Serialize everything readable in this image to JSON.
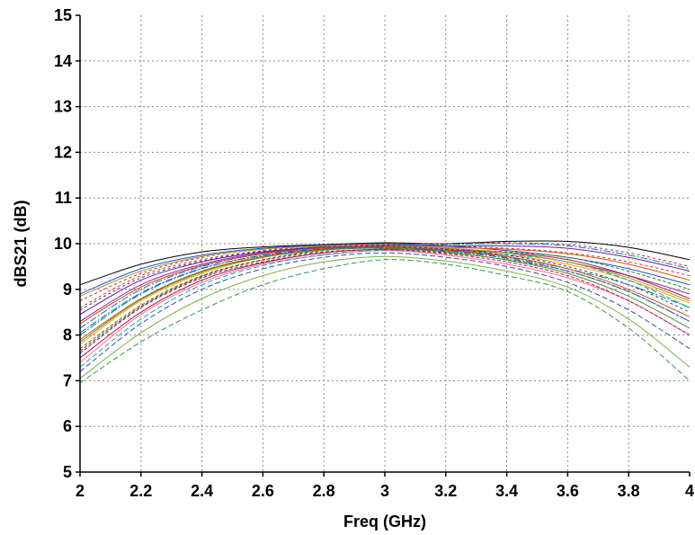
{
  "chart_data": {
    "type": "line",
    "title": "",
    "xlabel": "Freq (GHz)",
    "ylabel": "dBS21 (dB)",
    "xlim": [
      2,
      4
    ],
    "ylim": [
      5,
      15
    ],
    "x_ticks": [
      "2",
      "2.2",
      "2.4",
      "2.6",
      "2.8",
      "3",
      "3.2",
      "3.4",
      "3.6",
      "3.8",
      "4"
    ],
    "y_ticks": [
      "5",
      "6",
      "7",
      "8",
      "9",
      "10",
      "11",
      "12",
      "13",
      "14",
      "15"
    ],
    "grid": true,
    "legend": "none",
    "x": [
      2.0,
      2.2,
      2.4,
      2.6,
      2.8,
      3.0,
      3.2,
      3.4,
      3.6,
      3.8,
      4.0
    ],
    "series_count_description_free": true,
    "envelope": {
      "upper": [
        9.15,
        9.6,
        9.85,
        9.95,
        10.0,
        10.05,
        10.05,
        10.1,
        10.1,
        9.95,
        9.7
      ],
      "lower": [
        6.9,
        7.8,
        8.5,
        9.05,
        9.4,
        9.6,
        9.5,
        9.25,
        8.9,
        8.1,
        6.95
      ]
    },
    "series": [
      {
        "values": [
          9.1,
          9.55,
          9.82,
          9.93,
          9.98,
          10.02,
          10.0,
          10.05,
          10.05,
          9.92,
          9.65
        ],
        "color": "#000000"
      },
      {
        "values": [
          6.95,
          7.85,
          8.55,
          9.1,
          9.45,
          9.65,
          9.55,
          9.3,
          8.95,
          8.15,
          7.0
        ],
        "color": "#2a9d4a"
      },
      {
        "values": [
          8.9,
          9.45,
          9.75,
          9.9,
          9.97,
          10.0,
          9.95,
          9.85,
          9.7,
          9.45,
          9.1
        ],
        "color": "#1f4fd1"
      },
      {
        "values": [
          8.6,
          9.3,
          9.65,
          9.85,
          9.95,
          9.98,
          9.95,
          9.9,
          9.8,
          9.6,
          9.3
        ],
        "color": "#d12f2f"
      },
      {
        "values": [
          8.3,
          9.1,
          9.55,
          9.8,
          9.92,
          9.95,
          9.9,
          9.8,
          9.6,
          9.3,
          8.9
        ],
        "color": "#8e24aa"
      },
      {
        "values": [
          8.0,
          8.9,
          9.45,
          9.75,
          9.9,
          9.93,
          9.85,
          9.7,
          9.45,
          9.1,
          8.6
        ],
        "color": "#00897b"
      },
      {
        "values": [
          7.8,
          8.75,
          9.35,
          9.7,
          9.88,
          9.92,
          9.85,
          9.75,
          9.55,
          9.2,
          8.7
        ],
        "color": "#f4a300"
      },
      {
        "values": [
          7.6,
          8.6,
          9.25,
          9.6,
          9.8,
          9.88,
          9.8,
          9.65,
          9.4,
          8.95,
          8.3
        ],
        "color": "#5d4037"
      },
      {
        "values": [
          7.4,
          8.45,
          9.15,
          9.55,
          9.75,
          9.85,
          9.75,
          9.55,
          9.25,
          8.75,
          8.0
        ],
        "color": "#ff6f91"
      },
      {
        "values": [
          7.2,
          8.25,
          9.0,
          9.45,
          9.7,
          9.8,
          9.7,
          9.5,
          9.15,
          8.55,
          7.7
        ],
        "color": "#3949ab"
      },
      {
        "values": [
          7.05,
          8.05,
          8.8,
          9.3,
          9.6,
          9.72,
          9.62,
          9.4,
          9.05,
          8.35,
          7.3
        ],
        "color": "#7cb342"
      },
      {
        "values": [
          8.75,
          9.35,
          9.7,
          9.88,
          9.96,
          10.0,
          10.0,
          10.02,
          9.98,
          9.8,
          9.5
        ],
        "color": "#c62828"
      },
      {
        "values": [
          8.45,
          9.2,
          9.6,
          9.82,
          9.93,
          9.97,
          9.95,
          9.95,
          9.9,
          9.7,
          9.4
        ],
        "color": "#6a1b9a"
      },
      {
        "values": [
          8.15,
          9.0,
          9.5,
          9.78,
          9.91,
          9.96,
          9.98,
          10.0,
          9.95,
          9.75,
          9.45
        ],
        "color": "#0277bd"
      },
      {
        "values": [
          7.9,
          8.8,
          9.4,
          9.72,
          9.88,
          9.94,
          9.92,
          9.88,
          9.78,
          9.55,
          9.2
        ],
        "color": "#e65100"
      },
      {
        "values": [
          7.7,
          8.65,
          9.3,
          9.65,
          9.85,
          9.92,
          9.88,
          9.82,
          9.7,
          9.4,
          9.0
        ],
        "color": "#2e7d32"
      },
      {
        "values": [
          7.5,
          8.5,
          9.2,
          9.58,
          9.8,
          9.88,
          9.86,
          9.8,
          9.65,
          9.3,
          8.8
        ],
        "color": "#ad1457"
      },
      {
        "values": [
          7.3,
          8.35,
          9.1,
          9.52,
          9.76,
          9.86,
          9.84,
          9.76,
          9.6,
          9.2,
          8.6
        ],
        "color": "#00acc1"
      },
      {
        "values": [
          8.85,
          9.4,
          9.72,
          9.88,
          9.94,
          9.96,
          9.9,
          9.8,
          9.6,
          9.25,
          8.75
        ],
        "color": "#9e9d24"
      },
      {
        "values": [
          8.55,
          9.25,
          9.62,
          9.83,
          9.92,
          9.95,
          9.88,
          9.75,
          9.5,
          9.1,
          8.5
        ],
        "color": "#4527a0"
      },
      {
        "values": [
          8.25,
          9.05,
          9.52,
          9.78,
          9.9,
          9.93,
          9.86,
          9.72,
          9.45,
          9.0,
          8.4
        ],
        "color": "#d84315"
      },
      {
        "values": [
          8.05,
          8.92,
          9.46,
          9.74,
          9.88,
          9.92,
          9.84,
          9.68,
          9.4,
          8.95,
          8.3
        ],
        "color": "#1565c0"
      },
      {
        "values": [
          7.85,
          8.78,
          9.38,
          9.7,
          9.86,
          9.9,
          9.82,
          9.64,
          9.35,
          8.85,
          8.15
        ],
        "color": "#558b2f"
      },
      {
        "values": [
          7.65,
          8.62,
          9.28,
          9.64,
          9.82,
          9.87,
          9.78,
          9.6,
          9.3,
          8.75,
          8.0
        ],
        "color": "#c2185b"
      }
    ]
  }
}
